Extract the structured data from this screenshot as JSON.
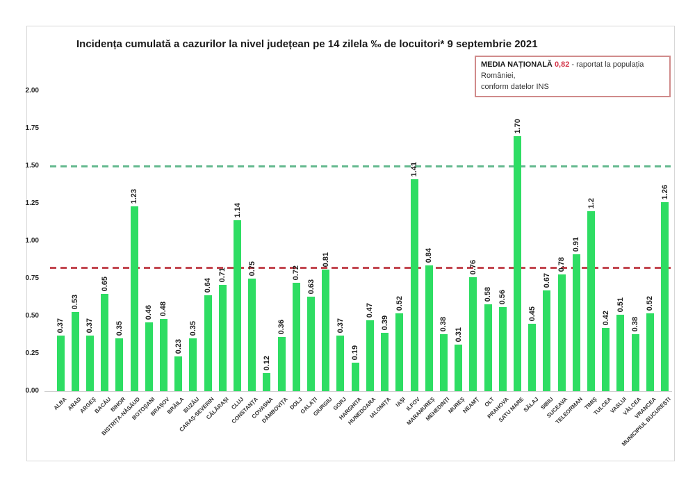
{
  "title": "Incidența cumulată a cazurilor la nivel județean pe 14 zilela ‰ de locuitori* 9 septembrie 2021",
  "legend": {
    "label": "MEDIA NAȚIONALĂ",
    "value": "0,82",
    "value_color": "#d4374b",
    "text_after": "- raportat la populația României,",
    "line2": "conform datelor INS"
  },
  "chart_data": {
    "type": "bar",
    "title": "Incidența cumulată a cazurilor la nivel județean pe 14 zilela ‰ de locuitori* 9 septembrie 2021",
    "xlabel": "",
    "ylabel": "",
    "ylim": [
      0,
      2.0
    ],
    "yticks": [
      "0.00",
      "0.25",
      "0.50",
      "0.75",
      "1.00",
      "1.25",
      "1.50",
      "1.75",
      "2.00"
    ],
    "grid": false,
    "legend_position": "top-right",
    "bar_color": "#2edd63",
    "reference_lines": [
      {
        "value": 1.5,
        "color": "#63b98e",
        "style": "dashed",
        "name": "threshold-1.50"
      },
      {
        "value": 0.82,
        "color": "#c2454f",
        "style": "dashed",
        "name": "media-nationala-0.82"
      }
    ],
    "categories": [
      "ALBA",
      "ARAD",
      "ARGEȘ",
      "BACĂU",
      "BIHOR",
      "BISTRIȚA-NĂSĂUD",
      "BOTOȘANI",
      "BRAȘOV",
      "BRĂILA",
      "BUZĂU",
      "CARAȘ-SEVERIN",
      "CĂLĂRAȘI",
      "CLUJ",
      "CONSTANȚA",
      "COVASNA",
      "DÂMBOVIȚA",
      "DOLJ",
      "GALAȚI",
      "GIURGIU",
      "GORJ",
      "HARGHITA",
      "HUNEDOARA",
      "IALOMIȚA",
      "IAȘI",
      "ILFOV",
      "MARAMUREȘ",
      "MEHEDINȚI",
      "MUREȘ",
      "NEAMȚ",
      "OLT",
      "PRAHOVA",
      "SATU MARE",
      "SĂLAJ",
      "SIBIU",
      "SUCEAVA",
      "TELEORMAN",
      "TIMIȘ",
      "TULCEA",
      "VASLUI",
      "VÂLCEA",
      "VRANCEA",
      "MUNICIPIUL BUCUREȘTI"
    ],
    "values": [
      0.37,
      0.53,
      0.37,
      0.65,
      0.35,
      1.23,
      0.46,
      0.48,
      0.23,
      0.35,
      0.64,
      0.71,
      1.14,
      0.75,
      0.12,
      0.36,
      0.72,
      0.63,
      0.81,
      0.37,
      0.19,
      0.47,
      0.39,
      0.52,
      1.41,
      0.84,
      0.38,
      0.31,
      0.76,
      0.58,
      0.56,
      1.7,
      0.45,
      0.67,
      0.78,
      0.91,
      1.2,
      0.42,
      0.51,
      0.38,
      0.52,
      1.26
    ],
    "value_labels": [
      "0.37",
      "0.53",
      "0.37",
      "0.65",
      "0.35",
      "1.23",
      "0.46",
      "0.48",
      "0.23",
      "0.35",
      "0.64",
      "0.71",
      "1.14",
      "0.75",
      "0.12",
      "0.36",
      "0.72",
      "0.63",
      "0.81",
      "0.37",
      "0.19",
      "0.47",
      "0.39",
      "0.52",
      "1.41",
      "0.84",
      "0.38",
      "0.31",
      "0.76",
      "0.58",
      "0.56",
      "1.70",
      "0.45",
      "0.67",
      "0.78",
      "0.91",
      "1.2",
      "0.42",
      "0.51",
      "0.38",
      "0.52",
      "1.26"
    ]
  }
}
